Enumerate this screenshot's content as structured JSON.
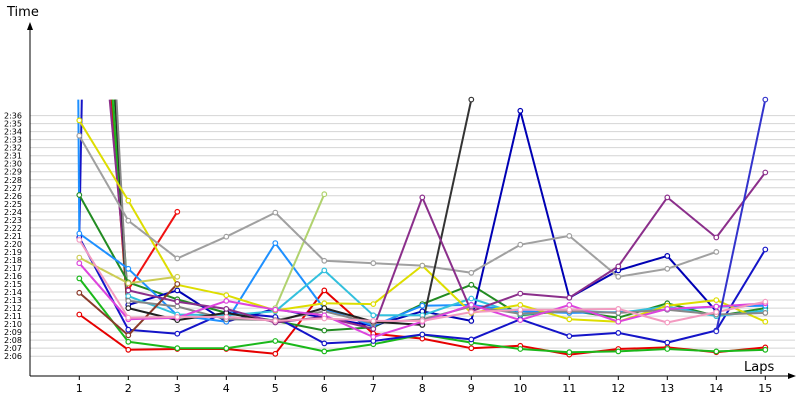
{
  "chart_data": {
    "type": "line",
    "ylabel": "Time",
    "xlabel": "Laps",
    "x": [
      1,
      2,
      3,
      4,
      5,
      6,
      7,
      8,
      9,
      10,
      11,
      12,
      13,
      14,
      15
    ],
    "ylim": [
      "2:05",
      "2:38"
    ],
    "grid": true,
    "yticks": [
      "2:06",
      "2:07",
      "2:08",
      "2:09",
      "2:10",
      "2:11",
      "2:12",
      "2:13",
      "2:14",
      "2:15",
      "2:16",
      "2:17",
      "2:18",
      "2:19",
      "2:20",
      "2:21",
      "2:22",
      "2:23",
      "2:24",
      "2:25",
      "2:26",
      "2:27",
      "2:28",
      "2:29",
      "2:30",
      "2:31",
      "2:32",
      "2:33",
      "2:34",
      "2:35",
      "2:36"
    ],
    "series": [
      {
        "color": "#e60000",
        "values": [
          "2:11.2",
          "2:06.8",
          "2:06.9",
          "2:06.9",
          "2:06.3",
          "2:14.2",
          "2:08.8",
          "2:08.2",
          "2:07.0",
          "2:07.3",
          "2:06.2",
          "2:06.9",
          "2:07.1",
          "2:06.5",
          "2:07.1"
        ]
      },
      {
        "color": "#f01010",
        "values": [
          null,
          "2:14.3",
          "2:24.0",
          null,
          null,
          null,
          null,
          null,
          null,
          null,
          null,
          null,
          null,
          null,
          null
        ]
      },
      {
        "color": "#1ab81a",
        "values": [
          "2:15.7",
          "2:07.8",
          "2:07.0",
          "2:07.0",
          "2:07.9",
          "2:06.6",
          "2:07.5",
          "2:08.7",
          "2:07.7",
          "2:06.9",
          "2:06.5",
          "2:06.6",
          "2:06.9",
          "2:06.6",
          "2:06.8"
        ]
      },
      {
        "color": "#228b22",
        "values": [
          "2:26.1",
          "2:15.2",
          "2:13.1",
          "2:11.4",
          "2:10.4",
          "2:09.2",
          "2:09.6",
          "2:12.5",
          "2:14.9",
          "2:11.1",
          "2:11.7",
          "2:10.8",
          "2:12.6",
          "2:11.0",
          "2:12.0"
        ]
      },
      {
        "color": "#1414c8",
        "values": [
          "2:20.8",
          "2:09.3",
          "2:08.8",
          "2:11.5",
          "2:10.9",
          "2:07.6",
          "2:07.9",
          "2:08.7",
          "2:08.1",
          "2:10.6",
          "2:08.5",
          "2:08.9",
          "2:07.7",
          "2:09.2",
          "2:19.3"
        ]
      },
      {
        "color": "#0000b4",
        "values": [
          null,
          "2:12.4",
          "2:14.2",
          "2:10.3",
          "2:11.9",
          "2:10.8",
          "2:09.8",
          "2:11.6",
          "2:10.4",
          "2:36.6",
          "2:13.3",
          "2:16.7",
          "2:18.5",
          "2:11.6",
          null
        ]
      },
      {
        "color": "#1e90ff",
        "values": [
          "2:21.3",
          "2:16.9",
          "2:11.1",
          "2:10.3",
          "2:20.1",
          "2:11.9",
          "2:09.8",
          "2:12.3",
          "2:12.4",
          "2:11.6",
          "2:11.4",
          "2:11.5",
          "2:11.8",
          "2:12.2",
          "2:12.3"
        ]
      },
      {
        "color": "#33c0dd",
        "values": [
          null,
          "2:13.5",
          "2:11.2",
          "2:11.1",
          "2:11.6",
          "2:16.7",
          "2:11.1",
          "2:11.1",
          "2:13.2",
          "2:11.2",
          "2:11.7",
          "2:11.4",
          "2:12.2",
          "2:11.0",
          "2:11.7"
        ]
      },
      {
        "color": "#dddd00",
        "values": [
          "2:35.4",
          "2:25.4",
          "2:14.9",
          "2:13.6",
          "2:11.7",
          "2:12.6",
          "2:12.5",
          "2:17.3",
          "2:11.4",
          "2:12.4",
          "2:10.6",
          "2:10.3",
          "2:12.3",
          "2:13.0",
          "2:10.3"
        ]
      },
      {
        "color": "#cccc55",
        "values": [
          "2:18.3",
          "2:15.1",
          "2:15.9",
          null,
          null,
          null,
          null,
          null,
          null,
          null,
          null,
          null,
          null,
          null,
          null
        ]
      },
      {
        "color": "#b0d26e",
        "values": [
          null,
          null,
          null,
          null,
          "2:12.0",
          "2:26.2",
          null,
          null,
          null,
          null,
          null,
          null,
          null,
          null,
          null
        ]
      },
      {
        "color": "#888888",
        "values": [
          null,
          "2:12.9",
          "2:12.2",
          "2:10.6",
          "2:10.5",
          "2:11.6",
          "2:10.1",
          "2:10.6",
          "2:12.2",
          "2:11.3",
          "2:11.6",
          "2:11.4",
          "2:11.8",
          "2:11.2",
          "2:11.4"
        ]
      },
      {
        "color": "#a0a0a0",
        "values": [
          "2:33.5",
          "2:22.9",
          "2:18.2",
          "2:20.9",
          "2:23.9",
          "2:17.9",
          "2:17.6",
          "2:17.3",
          "2:16.4",
          "2:19.9",
          "2:21.0",
          "2:15.9",
          "2:16.9",
          "2:19.0",
          null
        ]
      },
      {
        "color": "#8a3a2a",
        "values": [
          "2:13.9",
          "2:08.6",
          "2:15.0",
          null,
          null,
          null,
          null,
          null,
          null,
          null,
          null,
          null,
          null,
          null,
          null
        ]
      },
      {
        "color": "#202020",
        "values": [
          null,
          "2:12.0",
          "2:10.5",
          "2:11.4",
          "2:10.3",
          "2:12.0",
          "2:10.3",
          "2:09.9",
          null,
          null,
          null,
          null,
          null,
          null,
          null
        ]
      },
      {
        "color": "#333333",
        "values": [
          null,
          null,
          null,
          null,
          null,
          null,
          null,
          "2:09.9",
          "2:38.0",
          null,
          null,
          null,
          null,
          null,
          null
        ]
      },
      {
        "color": "#8b2f8b",
        "values": [
          null,
          "2:14.2",
          "2:12.8",
          "2:11.9",
          "2:10.2",
          "2:10.9",
          "2:09.4",
          "2:25.8",
          "2:11.6",
          "2:13.8",
          "2:13.3",
          "2:17.2",
          "2:25.8",
          "2:20.8",
          "2:28.9"
        ]
      },
      {
        "color": "#dd44dd",
        "values": [
          "2:17.6",
          "2:10.6",
          "2:10.8",
          "2:12.9",
          "2:11.8",
          "2:11.1",
          "2:08.4",
          "2:10.3",
          "2:12.4",
          "2:10.5",
          "2:12.4",
          "2:10.3",
          "2:11.9",
          "2:12.2",
          "2:12.6"
        ]
      },
      {
        "color": "#f39ac0",
        "values": [
          "2:20.5",
          "2:10.8",
          "2:10.9",
          "2:10.9",
          "2:10.4",
          "2:10.7",
          "2:10.4",
          "2:10.4",
          "2:11.5",
          "2:11.8",
          "2:11.8",
          "2:11.9",
          "2:10.2",
          "2:11.5",
          "2:12.8"
        ]
      },
      {
        "color": "#3333cc",
        "values": [
          null,
          null,
          null,
          null,
          null,
          null,
          null,
          null,
          null,
          null,
          null,
          null,
          null,
          "2:09.1",
          "2:38.0"
        ]
      }
    ],
    "offchart": [
      {
        "color": "#1414c8",
        "x": [
          1.0,
          1.05
        ],
        "y": [
          "2:20.8",
          "2:38.0"
        ]
      },
      {
        "color": "#1e90ff",
        "x": [
          1.0,
          0.98
        ],
        "y": [
          "2:21.3",
          "2:38.0"
        ]
      },
      {
        "color": "#e60000",
        "x": [
          1.66,
          1.97
        ],
        "y": [
          "2:38.0",
          "2:13.0"
        ]
      },
      {
        "color": "#1ab81a",
        "x": [
          1.68,
          1.97
        ],
        "y": [
          "2:38.0",
          "2:13.5"
        ]
      },
      {
        "color": "#228b22",
        "x": [
          1.72,
          1.98
        ],
        "y": [
          "2:38.0",
          "2:14.2"
        ]
      },
      {
        "color": "#8b2f8b",
        "x": [
          1.62,
          1.98
        ],
        "y": [
          "2:38.0",
          "2:14.2"
        ]
      },
      {
        "color": "#202020",
        "x": [
          1.74,
          1.98
        ],
        "y": [
          "2:38.0",
          "2:12.0"
        ]
      },
      {
        "color": "#888888",
        "x": [
          1.76,
          1.98
        ],
        "y": [
          "2:38.0",
          "2:12.9"
        ]
      }
    ]
  }
}
